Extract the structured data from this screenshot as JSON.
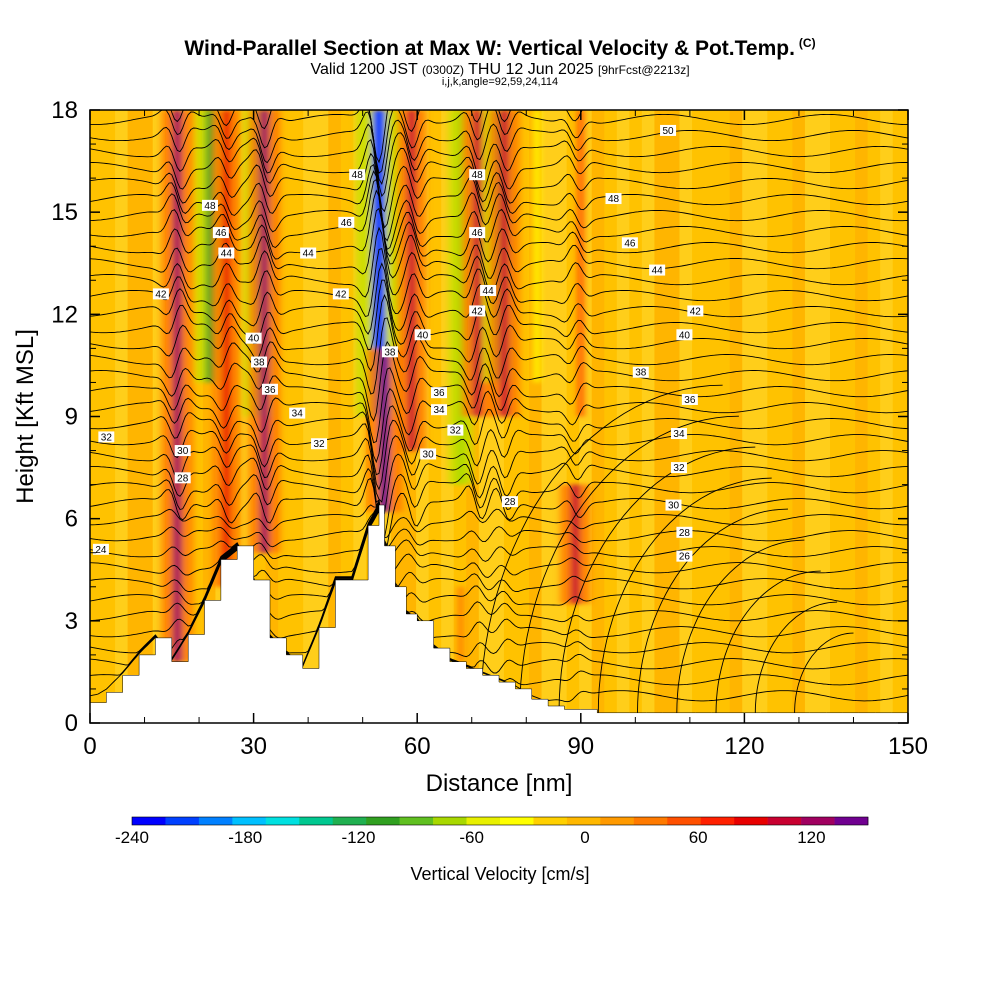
{
  "title": "Wind-Parallel Section at Max W: Vertical Velocity & Pot.Temp.",
  "title_mark": "(C)",
  "subtitle_pre": "Valid 1200 JST",
  "subtitle_utc": "(0300Z)",
  "subtitle_mid": "THU 12 Jun 2025",
  "subtitle_fcst": "[9hrFcst@2213z]",
  "subtitle2": "i,j,k,angle=92,59,24,114",
  "colors": {
    "colorbar": [
      "#0000ff",
      "#0040ff",
      "#0080ff",
      "#00c0ff",
      "#00e0e0",
      "#00c890",
      "#20b050",
      "#30a020",
      "#60c020",
      "#a8d800",
      "#e8f000",
      "#ffff00",
      "#ffd000",
      "#ffb800",
      "#ff9a00",
      "#ff7a00",
      "#ff5000",
      "#ff2000",
      "#e80000",
      "#c80030",
      "#a00060",
      "#700090"
    ],
    "background": "#ffc400",
    "terrain": "#ffffff",
    "contour": "#000000"
  },
  "chart_data": {
    "type": "heatmap",
    "xlabel": "Distance [nm]",
    "ylabel": "Height [Kft MSL]",
    "xlim": [
      0,
      150
    ],
    "ylim": [
      0,
      18
    ],
    "xticks": [
      "0",
      "30",
      "60",
      "90",
      "120",
      "150"
    ],
    "yticks": [
      "0",
      "3",
      "6",
      "9",
      "12",
      "15",
      "18"
    ],
    "colorbar": {
      "label": "Vertical Velocity [cm/s]",
      "ticks": [
        "-240",
        "-180",
        "-120",
        "-60",
        "0",
        "60",
        "120"
      ],
      "range": [
        -240,
        150
      ]
    },
    "terrain_profile_kft": {
      "x": [
        0,
        3,
        6,
        9,
        12,
        15,
        18,
        21,
        24,
        27,
        30,
        33,
        36,
        39,
        42,
        45,
        48,
        51,
        53,
        54,
        56,
        58,
        60,
        63,
        66,
        69,
        72,
        75,
        78,
        81,
        84,
        87,
        90,
        93,
        96,
        99,
        102,
        105,
        108,
        111,
        114,
        117,
        120,
        123,
        126,
        129,
        132,
        135,
        138,
        141,
        144,
        147,
        150
      ],
      "y": [
        0.6,
        0.9,
        1.4,
        2.0,
        2.5,
        1.8,
        2.6,
        3.6,
        4.8,
        5.2,
        4.2,
        2.5,
        2.0,
        1.6,
        2.8,
        4.2,
        4.2,
        5.8,
        6.4,
        5.2,
        4.0,
        3.2,
        3.0,
        2.2,
        1.8,
        1.6,
        1.4,
        1.2,
        1.0,
        0.7,
        0.5,
        0.4,
        0.4,
        0.3,
        0.3,
        0.3,
        0.3,
        0.3,
        0.3,
        0.3,
        0.3,
        0.3,
        0.3,
        0.3,
        0.3,
        0.3,
        0.3,
        0.3,
        0.3,
        0.3,
        0.3,
        0.3,
        0.3
      ]
    },
    "velocity_bands": [
      {
        "x": 16,
        "value": 120,
        "y_from": 1.8,
        "y_to": 18
      },
      {
        "x": 22,
        "value": -100,
        "y_from": 10,
        "y_to": 18
      },
      {
        "x": 25,
        "value": 90,
        "y_from": 4,
        "y_to": 18
      },
      {
        "x": 31,
        "value": -120,
        "y_from": 9,
        "y_to": 18
      },
      {
        "x": 32,
        "value": 120,
        "y_from": 5,
        "y_to": 18
      },
      {
        "x": 53,
        "value": -220,
        "y_from": 9,
        "y_to": 18
      },
      {
        "x": 54,
        "value": 150,
        "y_from": 6.2,
        "y_to": 11
      },
      {
        "x": 59,
        "value": 100,
        "y_from": 8,
        "y_to": 18
      },
      {
        "x": 68,
        "value": -70,
        "y_from": 7,
        "y_to": 18
      },
      {
        "x": 71,
        "value": 110,
        "y_from": 9,
        "y_to": 18
      },
      {
        "x": 75,
        "value": -120,
        "y_from": 10,
        "y_to": 18
      },
      {
        "x": 76,
        "value": 110,
        "y_from": 9,
        "y_to": 18
      },
      {
        "x": 82,
        "value": -40,
        "y_from": 10,
        "y_to": 18
      },
      {
        "x": 89,
        "value": 110,
        "y_from": 3.5,
        "y_to": 7
      },
      {
        "x": 90,
        "value": 50,
        "y_from": 9,
        "y_to": 18
      },
      {
        "x": 68,
        "value": 40,
        "y_from": 1.8,
        "y_to": 4
      }
    ],
    "theta_contour_labels": [
      {
        "label": "50",
        "x": 106,
        "y": 17.4
      },
      {
        "label": "48",
        "x": 49,
        "y": 16.1
      },
      {
        "label": "48",
        "x": 71,
        "y": 16.1
      },
      {
        "label": "48",
        "x": 22,
        "y": 15.2
      },
      {
        "label": "48",
        "x": 96,
        "y": 15.4
      },
      {
        "label": "46",
        "x": 24,
        "y": 14.4
      },
      {
        "label": "46",
        "x": 47,
        "y": 14.7
      },
      {
        "label": "46",
        "x": 71,
        "y": 14.4
      },
      {
        "label": "46",
        "x": 99,
        "y": 14.1
      },
      {
        "label": "44",
        "x": 25,
        "y": 13.8
      },
      {
        "label": "44",
        "x": 40,
        "y": 13.8
      },
      {
        "label": "44",
        "x": 73,
        "y": 12.7
      },
      {
        "label": "44",
        "x": 104,
        "y": 13.3
      },
      {
        "label": "42",
        "x": 13,
        "y": 12.6
      },
      {
        "label": "42",
        "x": 46,
        "y": 12.6
      },
      {
        "label": "42",
        "x": 71,
        "y": 12.1
      },
      {
        "label": "42",
        "x": 111,
        "y": 12.1
      },
      {
        "label": "40",
        "x": 30,
        "y": 11.3
      },
      {
        "label": "40",
        "x": 61,
        "y": 11.4
      },
      {
        "label": "40",
        "x": 109,
        "y": 11.4
      },
      {
        "label": "38",
        "x": 31,
        "y": 10.6
      },
      {
        "label": "38",
        "x": 55,
        "y": 10.9
      },
      {
        "label": "38",
        "x": 101,
        "y": 10.3
      },
      {
        "label": "36",
        "x": 33,
        "y": 9.8
      },
      {
        "label": "36",
        "x": 64,
        "y": 9.7
      },
      {
        "label": "36",
        "x": 110,
        "y": 9.5
      },
      {
        "label": "34",
        "x": 38,
        "y": 9.1
      },
      {
        "label": "34",
        "x": 64,
        "y": 9.2
      },
      {
        "label": "34",
        "x": 108,
        "y": 8.5
      },
      {
        "label": "32",
        "x": 3,
        "y": 8.4
      },
      {
        "label": "32",
        "x": 42,
        "y": 8.2
      },
      {
        "label": "32",
        "x": 67,
        "y": 8.6
      },
      {
        "label": "32",
        "x": 108,
        "y": 7.5
      },
      {
        "label": "30",
        "x": 17,
        "y": 8.0
      },
      {
        "label": "30",
        "x": 62,
        "y": 7.9
      },
      {
        "label": "30",
        "x": 107,
        "y": 6.4
      },
      {
        "label": "28",
        "x": 17,
        "y": 7.2
      },
      {
        "label": "28",
        "x": 77,
        "y": 6.5
      },
      {
        "label": "28",
        "x": 109,
        "y": 5.6
      },
      {
        "label": "26",
        "x": 109,
        "y": 4.9
      },
      {
        "label": "24",
        "x": 2,
        "y": 5.1
      }
    ]
  }
}
